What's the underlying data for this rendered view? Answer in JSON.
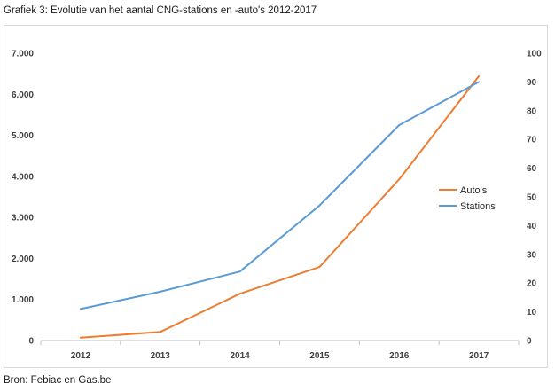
{
  "title": "Grafiek 3: Evolutie van het aantal CNG-stations en -auto's 2012-2017",
  "source": "Bron: Febiac en Gas.be",
  "chart_data": {
    "type": "line",
    "x": [
      "2012",
      "2013",
      "2014",
      "2015",
      "2016",
      "2017"
    ],
    "left_axis": {
      "range": [
        0,
        7000
      ],
      "tick_values": [
        0,
        1000,
        2000,
        3000,
        4000,
        5000,
        6000,
        7000
      ],
      "tick_labels": [
        "0",
        "1.000",
        "2.000",
        "3.000",
        "4.000",
        "5.000",
        "6.000",
        "7.000"
      ]
    },
    "right_axis": {
      "range": [
        0,
        100
      ],
      "tick_values": [
        0,
        10,
        20,
        30,
        40,
        50,
        60,
        70,
        80,
        90,
        100
      ],
      "tick_labels": [
        "0",
        "10",
        "20",
        "30",
        "40",
        "50",
        "60",
        "70",
        "80",
        "90",
        "100"
      ]
    },
    "series": [
      {
        "name": "Auto's",
        "axis": "left",
        "color": "#ed7d31",
        "values": [
          70,
          210,
          1140,
          1790,
          3930,
          6440
        ]
      },
      {
        "name": "Stations",
        "axis": "right",
        "color": "#5b9bd5",
        "values": [
          11,
          17,
          24,
          47,
          75,
          90
        ]
      }
    ],
    "grid": false,
    "legend_position": "right"
  }
}
